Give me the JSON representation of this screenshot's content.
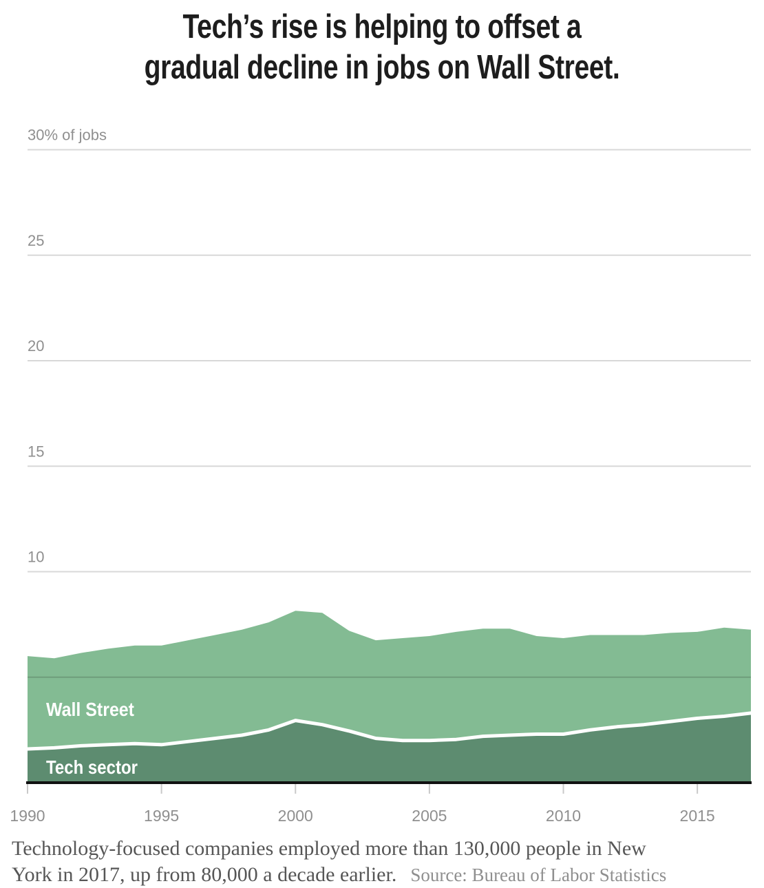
{
  "title": {
    "line1": "Tech’s rise is helping to offset a",
    "line2": "gradual decline in jobs on Wall Street."
  },
  "footer": {
    "line1": "Technology-focused companies employed more than 130,000 people in New",
    "line2": "York in 2017, up from 80,000 a decade earlier.",
    "source": "Source: Bureau of Labor Statistics"
  },
  "colors": {
    "wall_street_area": "#83bb93",
    "tech_area": "#5d8c70",
    "divider_line": "#ffffff",
    "gridline": "#d8d8d8",
    "axis": "#111111",
    "tick": "#c9c9c9",
    "label_gray": "#8f8f8f",
    "title_text": "#1d1d1d",
    "footer_text": "#565656"
  },
  "chart_data": {
    "type": "area",
    "stacked": true,
    "title": "Tech’s rise is helping to offset a gradual decline in jobs on Wall Street.",
    "xlabel": "",
    "ylabel": "30% of jobs",
    "xlim": [
      1990,
      2017
    ],
    "ylim": [
      0,
      30
    ],
    "grid": true,
    "legend_position": "labels-inside-areas",
    "x": [
      1990,
      1991,
      1992,
      1993,
      1994,
      1995,
      1996,
      1997,
      1998,
      1999,
      2000,
      2001,
      2002,
      2003,
      2004,
      2005,
      2006,
      2007,
      2008,
      2009,
      2010,
      2011,
      2012,
      2013,
      2014,
      2015,
      2016,
      2017
    ],
    "series": [
      {
        "name": "Tech sector",
        "color": "#5d8c70",
        "values": [
          1.6,
          1.65,
          1.75,
          1.8,
          1.85,
          1.8,
          1.95,
          2.1,
          2.25,
          2.5,
          2.95,
          2.75,
          2.45,
          2.1,
          2.0,
          2.0,
          2.05,
          2.2,
          2.25,
          2.3,
          2.3,
          2.5,
          2.65,
          2.75,
          2.9,
          3.05,
          3.15,
          3.3
        ]
      },
      {
        "name": "Wall Street",
        "color": "#83bb93",
        "values": [
          4.4,
          4.25,
          4.4,
          4.55,
          4.65,
          4.7,
          4.8,
          4.9,
          5.0,
          5.1,
          5.2,
          5.3,
          4.75,
          4.65,
          4.85,
          4.95,
          5.1,
          5.1,
          5.05,
          4.65,
          4.55,
          4.5,
          4.35,
          4.25,
          4.2,
          4.1,
          4.2,
          3.95
        ]
      }
    ],
    "yticks": [
      {
        "value": 30,
        "label": "30% of jobs"
      },
      {
        "value": 25,
        "label": "25"
      },
      {
        "value": 20,
        "label": "20"
      },
      {
        "value": 15,
        "label": "15"
      },
      {
        "value": 10,
        "label": "10"
      },
      {
        "value": 5,
        "label": ""
      }
    ],
    "xticks": [
      {
        "value": 1990,
        "label": "1990"
      },
      {
        "value": 1995,
        "label": "1995"
      },
      {
        "value": 2000,
        "label": "2000"
      },
      {
        "value": 2005,
        "label": "2005"
      },
      {
        "value": 2010,
        "label": "2010"
      },
      {
        "value": 2015,
        "label": "2015"
      }
    ]
  }
}
